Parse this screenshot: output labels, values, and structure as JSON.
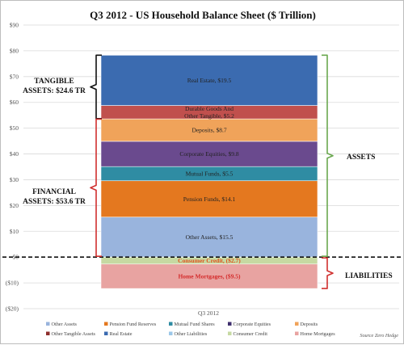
{
  "chart_data": {
    "type": "bar",
    "stacked": true,
    "title": "Q3 2012 - US Household Balance Sheet ($ Trillion)",
    "categories": [
      "Q3 2012"
    ],
    "ylim": [
      -20,
      90
    ],
    "y_ticks": [
      {
        "value": 90,
        "label": "$90"
      },
      {
        "value": 80,
        "label": "$80"
      },
      {
        "value": 70,
        "label": "$70"
      },
      {
        "value": 60,
        "label": "$60"
      },
      {
        "value": 50,
        "label": "$50"
      },
      {
        "value": 40,
        "label": "$40"
      },
      {
        "value": 30,
        "label": "$30"
      },
      {
        "value": 20,
        "label": "$20"
      },
      {
        "value": 10,
        "label": "$10"
      },
      {
        "value": 0,
        "label": "$0"
      },
      {
        "value": -10,
        "label": "($10)"
      },
      {
        "value": -20,
        "label": "($20)"
      }
    ],
    "grid": true,
    "series": [
      {
        "name": "Other Assets",
        "value": 15.5,
        "label": "Other Assets, $15.5",
        "color": "#99b4dd",
        "text_color": "#222222"
      },
      {
        "name": "Pension Fund Reserves",
        "value": 14.1,
        "label": "Pension Funds, $14.1",
        "color": "#e4781f",
        "text_color": "#222222"
      },
      {
        "name": "Mutual Fund Shares",
        "value": 5.5,
        "label": "Mutual Funds, $5.5",
        "color": "#2f8ca3",
        "text_color": "#222222"
      },
      {
        "name": "Corporate Equities",
        "value": 9.8,
        "label": "Corporate Equities, $9.8",
        "color": "#6a4a8e",
        "text_color": "#222222"
      },
      {
        "name": "Deposits",
        "value": 8.7,
        "label": "Deposits, $8.7",
        "color": "#f0a35a",
        "text_color": "#222222"
      },
      {
        "name": "Other Tangible Assets",
        "value": 5.2,
        "label": "Durable Goods And|Other Tangible, $5.2",
        "color": "#c0504d",
        "text_color": "#222222"
      },
      {
        "name": "Real Estate",
        "value": 19.5,
        "label": "Real Estate, $19.5",
        "color": "#3b6bb0",
        "text_color": "#222222"
      },
      {
        "name": "Other Liabilities",
        "value": 0,
        "label": "",
        "color": "#9bc7e8",
        "text_color": "#222222"
      },
      {
        "name": "Consumer Credit",
        "value": -2.7,
        "label": "Consumer Credit, ($2.7)",
        "color": "#c6d9a2",
        "text_color": "#e0541f"
      },
      {
        "name": "Home Mortgages",
        "value": -9.5,
        "label": "Home Mortgages, ($9.5)",
        "color": "#e8a3a1",
        "text_color": "#d42b2b"
      }
    ],
    "annotations": {
      "tangible": "TANGIBLE|ASSETS: $24.6 TR",
      "financial": "FINANCIAL|ASSETS: $53.6 TR",
      "assets": "ASSETS",
      "liabilities": "LIABILITIES"
    },
    "legend_placement": "bottom",
    "legend_colors": {
      "Other Assets": "#99b4dd",
      "Pension Fund Reserves": "#e4781f",
      "Mutual Fund Shares": "#2f8ca3",
      "Corporate Equities": "#3f2f6e",
      "Deposits": "#f0a35a",
      "Other Tangible Assets": "#8e2f2d",
      "Real Estate": "#3b6bb0",
      "Other Liabilities": "#9bc7e8",
      "Consumer Credit": "#c6d9a2",
      "Home Mortgages": "#e8a3a1"
    },
    "source": "Source Zero Hedge"
  }
}
